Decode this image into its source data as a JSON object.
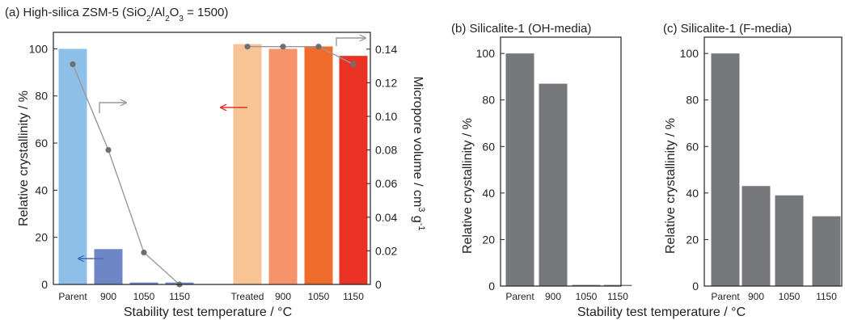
{
  "chart_data": [
    {
      "id": "a",
      "type": "bar",
      "title": "(a) High-silica ZSM-5 (SiO2/Al2O3 = 1500)",
      "title_parts": {
        "prefix": "(a) High-silica ZSM-5 (SiO",
        "sub1": "2",
        "mid": "/Al",
        "sub2": "2",
        "mid2": "O",
        "sub3": "3",
        "suffix": " = 1500)"
      },
      "ylabel": "Relative crystallinity / %",
      "y2label_parts": {
        "main": "Micropore volume / cm",
        "sup1": "3",
        "mid": " g",
        "sup2": "-1"
      },
      "xlabel": "Stability test temperature / °C",
      "ylim": [
        0,
        107
      ],
      "y2lim": [
        0,
        0.15
      ],
      "yticks": [
        0,
        20,
        40,
        60,
        80,
        100
      ],
      "y2ticks": [
        "0",
        "0.02",
        "0.04",
        "0.06",
        "0.08",
        "0.10",
        "0.12",
        "0.14"
      ],
      "categories": [
        "Parent",
        "900",
        "1050",
        "1150",
        "Treated",
        "900",
        "1050",
        "1150"
      ],
      "bars": [
        {
          "category": "Parent",
          "value": 100,
          "color": "#8dbfe8"
        },
        {
          "category": "900",
          "value": 15,
          "color": "#6f86c6"
        },
        {
          "category": "1050",
          "value": 0.8,
          "color": "#6f86c6"
        },
        {
          "category": "1150",
          "value": 0.8,
          "color": "#6f86c6"
        },
        {
          "category": "Treated",
          "value": 102,
          "color": "#f9c495"
        },
        {
          "category": "900",
          "value": 100,
          "color": "#f6936a"
        },
        {
          "category": "1050",
          "value": 101,
          "color": "#f06c2a"
        },
        {
          "category": "1150",
          "value": 97,
          "color": "#ea3325"
        }
      ],
      "line_series": [
        {
          "axis": "right",
          "x_index": [
            0,
            1,
            2,
            3
          ],
          "values": [
            0.131,
            0.08,
            0.019,
            0.0
          ],
          "color": "#999999",
          "marker": "#6f6f6f"
        },
        {
          "axis": "right",
          "x_index": [
            4,
            5,
            6,
            7
          ],
          "values": [
            0.1415,
            0.1415,
            0.1415,
            0.131
          ],
          "color": "#999999",
          "marker": "#6f6f6f"
        }
      ],
      "annotations": [
        {
          "type": "arrow",
          "meaning": "points to right axis",
          "color": "#999999"
        },
        {
          "type": "arrow",
          "meaning": "points to left axis",
          "color": "#e03030"
        },
        {
          "type": "arrow",
          "meaning": "points to left axis",
          "color": "#4a6ab0"
        },
        {
          "type": "arrow",
          "meaning": "points to right axis",
          "color": "#999999"
        }
      ]
    },
    {
      "id": "b",
      "type": "bar",
      "title": "(b) Silicalite-1 (OH-media)",
      "ylabel": "Relative crystallinity / %",
      "xlabel": "Stability test temperature / °C",
      "ylim": [
        0,
        107
      ],
      "yticks": [
        0,
        20,
        40,
        60,
        80,
        100
      ],
      "categories": [
        "Parent",
        "900",
        "1050",
        "1150"
      ],
      "values": [
        100,
        87,
        0.5,
        0.5
      ],
      "color": "#77787c"
    },
    {
      "id": "c",
      "type": "bar",
      "title": "(c) Silicalite-1 (F-media)",
      "ylabel": "Relative crystallinity / %",
      "xlabel": "",
      "ylim": [
        0,
        107
      ],
      "yticks": [
        0,
        20,
        40,
        60,
        80,
        100
      ],
      "categories": [
        "Parent",
        "900",
        "1050",
        "1150"
      ],
      "values": [
        100,
        43,
        39,
        30
      ],
      "color": "#77787c"
    }
  ]
}
